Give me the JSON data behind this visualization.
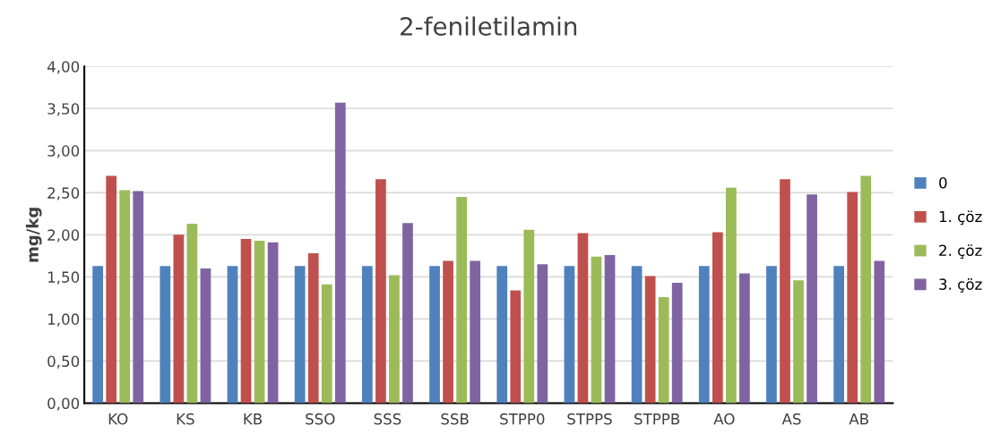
{
  "chart_data": {
    "type": "bar",
    "title": "2-feniletilamin",
    "ylabel": "mg/kg",
    "categories": [
      "KO",
      "KS",
      "KB",
      "SSO",
      "SSS",
      "SSB",
      "STPP0",
      "STPPS",
      "STPPB",
      "AO",
      "AS",
      "AB"
    ],
    "series": [
      {
        "name": "0",
        "color": "#4f81bd",
        "values": [
          1.63,
          1.63,
          1.63,
          1.63,
          1.63,
          1.63,
          1.63,
          1.63,
          1.63,
          1.63,
          1.63,
          1.63
        ]
      },
      {
        "name": "1. çöz",
        "color": "#c0504d",
        "values": [
          2.7,
          2.0,
          1.95,
          1.78,
          2.66,
          1.69,
          1.34,
          2.02,
          1.51,
          2.03,
          2.66,
          2.51
        ]
      },
      {
        "name": "2. çöz",
        "color": "#9bbb59",
        "values": [
          2.53,
          2.13,
          1.93,
          1.41,
          1.52,
          2.45,
          2.06,
          1.74,
          1.26,
          2.56,
          1.46,
          2.7
        ]
      },
      {
        "name": "3. çöz",
        "color": "#8064a2",
        "values": [
          2.52,
          1.6,
          1.91,
          3.57,
          2.14,
          1.69,
          1.65,
          1.76,
          1.43,
          1.54,
          2.48,
          1.69
        ]
      }
    ],
    "ylim": [
      0,
      4
    ],
    "yticks": [
      {
        "value": 0,
        "label": "0,00"
      },
      {
        "value": 0.5,
        "label": "0,50"
      },
      {
        "value": 1,
        "label": "1,00"
      },
      {
        "value": 1.5,
        "label": "1,50"
      },
      {
        "value": 2,
        "label": "2,00"
      },
      {
        "value": 2.5,
        "label": "2,50"
      },
      {
        "value": 3,
        "label": "3,00"
      },
      {
        "value": 3.5,
        "label": "3,50"
      },
      {
        "value": 4,
        "label": "4,00"
      }
    ],
    "grid": "y",
    "legend": "right"
  }
}
